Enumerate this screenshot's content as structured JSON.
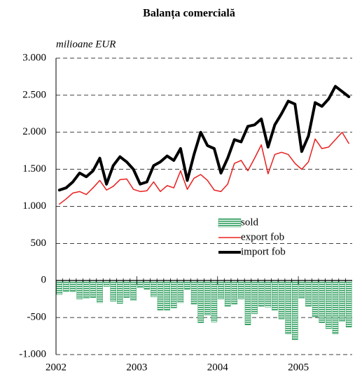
{
  "chart_data": {
    "type": "combo",
    "title": "Balanța comercială",
    "y_axis_label": "milioane EUR",
    "categories": [
      "2002",
      null,
      null,
      null,
      null,
      null,
      null,
      null,
      null,
      null,
      null,
      null,
      "2003",
      null,
      null,
      null,
      null,
      null,
      null,
      null,
      null,
      null,
      null,
      null,
      "2004",
      null,
      null,
      null,
      null,
      null,
      null,
      null,
      null,
      null,
      null,
      null,
      "2005",
      null,
      null,
      null,
      null,
      null,
      null,
      null
    ],
    "series": [
      {
        "name": "sold",
        "type": "bar",
        "color": "#2e9e5e",
        "values": [
          -190,
          -150,
          -150,
          -250,
          -240,
          -230,
          -300,
          -80,
          -280,
          -310,
          -230,
          -270,
          -100,
          -120,
          -220,
          -400,
          -400,
          -370,
          -300,
          -120,
          -320,
          -570,
          -470,
          -560,
          -250,
          -350,
          -320,
          -250,
          -600,
          -450,
          -350,
          -360,
          -400,
          -520,
          -720,
          -800,
          -240,
          -350,
          -490,
          -570,
          -650,
          -720,
          -550,
          -630
        ]
      },
      {
        "name": "export fob",
        "type": "line",
        "color": "#e8201e",
        "line_width": 1.5,
        "values": [
          1030,
          1100,
          1180,
          1200,
          1160,
          1250,
          1350,
          1220,
          1270,
          1360,
          1370,
          1230,
          1200,
          1210,
          1330,
          1200,
          1280,
          1250,
          1480,
          1230,
          1380,
          1430,
          1350,
          1220,
          1200,
          1300,
          1580,
          1620,
          1480,
          1650,
          1830,
          1440,
          1700,
          1730,
          1700,
          1580,
          1500,
          1600,
          1910,
          1780,
          1800,
          1900,
          2000,
          1850
        ]
      },
      {
        "name": "import fob",
        "type": "line",
        "color": "#000000",
        "line_width": 4,
        "values": [
          1220,
          1250,
          1330,
          1450,
          1400,
          1480,
          1650,
          1300,
          1550,
          1670,
          1600,
          1500,
          1300,
          1330,
          1550,
          1600,
          1680,
          1620,
          1780,
          1350,
          1700,
          2000,
          1820,
          1780,
          1450,
          1650,
          1900,
          1870,
          2080,
          2100,
          2180,
          1800,
          2100,
          2250,
          2420,
          2380,
          1740,
          1950,
          2400,
          2350,
          2450,
          2620,
          2550,
          2480
        ]
      }
    ],
    "ylim": [
      -1000,
      3000
    ],
    "yticks": [
      {
        "value": -1000,
        "label": "-1.000"
      },
      -500,
      0,
      500,
      {
        "value": 1000,
        "label": "1.000"
      },
      {
        "value": 1500,
        "label": "1.500"
      },
      {
        "value": 2000,
        "label": "2.000"
      },
      {
        "value": 2500,
        "label": "2.500"
      },
      {
        "value": 3000,
        "label": "3.000"
      }
    ],
    "grid": true
  }
}
